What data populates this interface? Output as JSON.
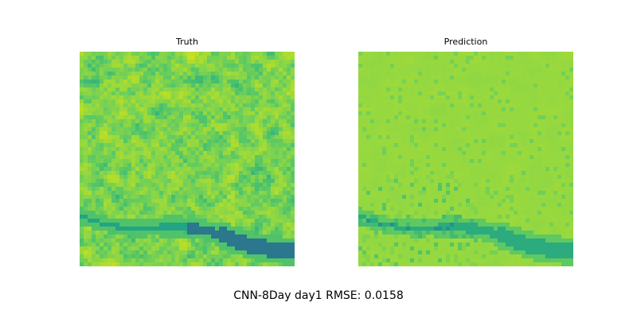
{
  "figure": {
    "suptitle": "CNN-8Day day1 RMSE: 0.0158",
    "panels": [
      {
        "title": "Truth"
      },
      {
        "title": "Prediction"
      }
    ]
  },
  "colors": {
    "yellow": "#dde318",
    "yellow_green": "#b8de29",
    "light_green": "#95d840",
    "green": "#73d056",
    "teal_green": "#4ac16d",
    "teal": "#1fa187",
    "dark_teal": "#277f8e",
    "blue_teal": "#2c728e"
  }
}
